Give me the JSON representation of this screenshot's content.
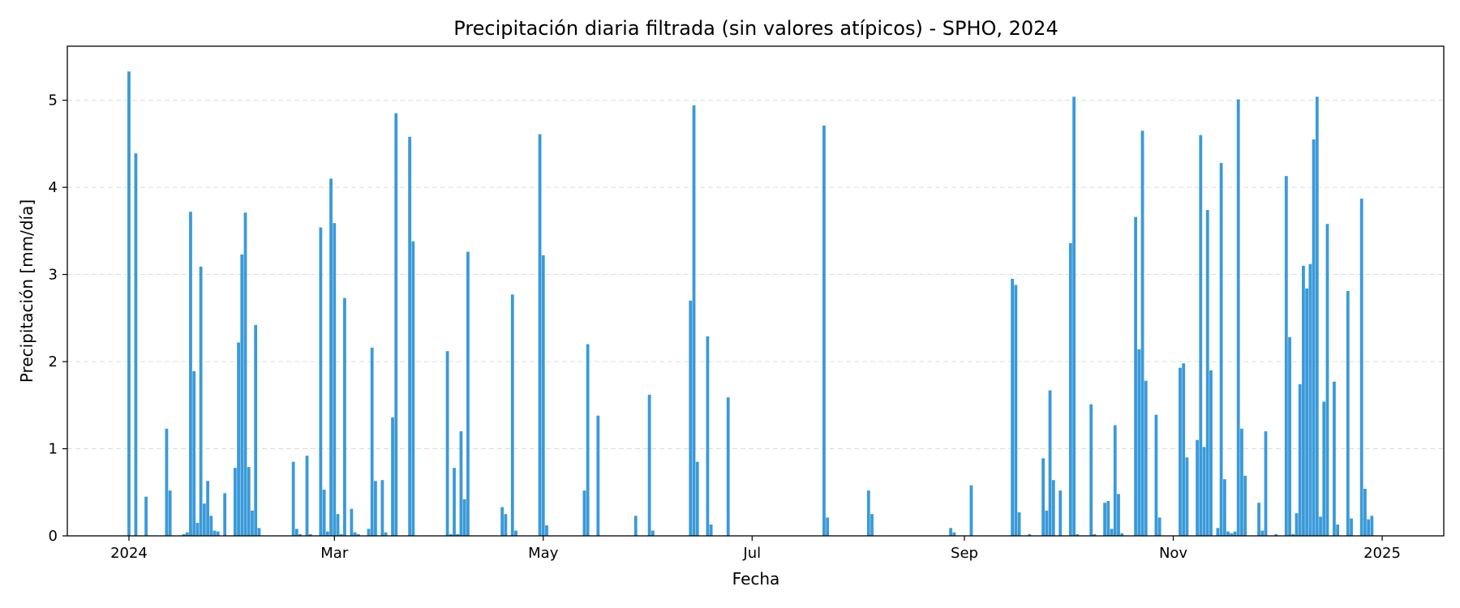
{
  "chart_data": {
    "type": "bar",
    "title": "Precipitación diaria filtrada (sin valores atípicos) - SPHO, 2024",
    "xlabel": "Fecha",
    "ylabel": "Precipitación [mm/día]",
    "x_tick_labels": [
      "2024",
      "Mar",
      "May",
      "Jul",
      "Sep",
      "Nov",
      "2025"
    ],
    "x_tick_dates": [
      "2024-01-01",
      "2024-03-01",
      "2024-05-01",
      "2024-07-01",
      "2024-09-01",
      "2024-11-01",
      "2025-01-01"
    ],
    "y_ticks": [
      0,
      1,
      2,
      3,
      4,
      5
    ],
    "xlim": [
      "2023-12-14",
      "2025-01-19"
    ],
    "ylim": [
      0,
      5.62
    ],
    "grid": "y-dashed",
    "bar_color": "#3a9ad9",
    "dates": [
      "2024-01-01",
      "2024-01-03",
      "2024-01-06",
      "2024-01-12",
      "2024-01-13",
      "2024-01-17",
      "2024-01-18",
      "2024-01-19",
      "2024-01-20",
      "2024-01-21",
      "2024-01-22",
      "2024-01-23",
      "2024-01-24",
      "2024-01-25",
      "2024-01-26",
      "2024-01-27",
      "2024-01-29",
      "2024-02-01",
      "2024-02-02",
      "2024-02-03",
      "2024-02-04",
      "2024-02-05",
      "2024-02-06",
      "2024-02-07",
      "2024-02-08",
      "2024-02-18",
      "2024-02-19",
      "2024-02-20",
      "2024-02-22",
      "2024-02-23",
      "2024-02-26",
      "2024-02-27",
      "2024-02-28",
      "2024-02-29",
      "2024-03-01",
      "2024-03-02",
      "2024-03-03",
      "2024-03-04",
      "2024-03-06",
      "2024-03-07",
      "2024-03-08",
      "2024-03-11",
      "2024-03-12",
      "2024-03-13",
      "2024-03-15",
      "2024-03-16",
      "2024-03-18",
      "2024-03-19",
      "2024-03-23",
      "2024-03-24",
      "2024-04-03",
      "2024-04-04",
      "2024-04-05",
      "2024-04-06",
      "2024-04-07",
      "2024-04-08",
      "2024-04-09",
      "2024-04-19",
      "2024-04-20",
      "2024-04-22",
      "2024-04-23",
      "2024-04-30",
      "2024-05-01",
      "2024-05-02",
      "2024-05-13",
      "2024-05-14",
      "2024-05-17",
      "2024-05-28",
      "2024-06-01",
      "2024-06-02",
      "2024-06-13",
      "2024-06-14",
      "2024-06-15",
      "2024-06-18",
      "2024-06-19",
      "2024-06-24",
      "2024-07-22",
      "2024-07-23",
      "2024-08-04",
      "2024-08-05",
      "2024-08-28",
      "2024-08-29",
      "2024-09-03",
      "2024-09-15",
      "2024-09-16",
      "2024-09-17",
      "2024-09-20",
      "2024-09-24",
      "2024-09-25",
      "2024-09-26",
      "2024-09-27",
      "2024-09-29",
      "2024-10-02",
      "2024-10-03",
      "2024-10-04",
      "2024-10-08",
      "2024-10-09",
      "2024-10-12",
      "2024-10-13",
      "2024-10-14",
      "2024-10-15",
      "2024-10-16",
      "2024-10-17",
      "2024-10-21",
      "2024-10-22",
      "2024-10-23",
      "2024-10-24",
      "2024-10-27",
      "2024-10-28",
      "2024-11-03",
      "2024-11-04",
      "2024-11-05",
      "2024-11-08",
      "2024-11-09",
      "2024-11-10",
      "2024-11-11",
      "2024-11-12",
      "2024-11-14",
      "2024-11-15",
      "2024-11-16",
      "2024-11-17",
      "2024-11-18",
      "2024-11-19",
      "2024-11-20",
      "2024-11-21",
      "2024-11-22",
      "2024-11-26",
      "2024-11-27",
      "2024-11-28",
      "2024-12-01",
      "2024-12-04",
      "2024-12-05",
      "2024-12-06",
      "2024-12-07",
      "2024-12-08",
      "2024-12-09",
      "2024-12-10",
      "2024-12-11",
      "2024-12-12",
      "2024-12-13",
      "2024-12-14",
      "2024-12-15",
      "2024-12-16",
      "2024-12-18",
      "2024-12-19",
      "2024-12-28",
      "2024-12-29"
    ],
    "values": [
      5.33,
      4.39,
      0.45,
      1.23,
      0.52,
      0.02,
      0.04,
      3.72,
      1.89,
      0.15,
      3.09,
      0.37,
      0.63,
      0.23,
      0.06,
      0.05,
      0.49,
      0.78,
      2.22,
      3.23,
      3.71,
      0.79,
      0.29,
      2.42,
      0.09,
      0.85,
      0.08,
      0.02,
      0.92,
      0.02,
      3.54,
      0.53,
      0.05,
      4.1,
      3.59,
      0.25,
      0.02,
      2.73,
      0.31,
      0.04,
      0.02,
      0.08,
      2.16,
      0.63,
      0.64,
      0.04,
      1.36,
      4.85,
      4.58,
      3.38,
      2.12,
      0.02,
      0.78,
      0.02,
      1.2,
      0.42,
      3.26,
      0.33,
      0.25,
      2.77,
      0.06,
      4.61,
      3.22,
      0.12,
      0.52,
      2.2,
      1.38,
      0.23,
      1.62,
      0.06,
      2.7,
      4.94,
      0.85,
      2.29,
      0.13,
      1.59,
      4.71,
      0.21,
      0.52,
      0.25,
      0.09,
      0.04,
      0.58,
      2.95,
      2.88,
      0.27,
      0.02,
      0.89,
      0.29,
      1.67,
      0.64,
      0.52,
      3.36,
      5.04,
      0.02,
      1.51,
      0.02,
      0.38,
      0.4,
      0.08,
      1.27,
      0.48,
      0.03,
      3.66,
      2.14,
      4.65,
      1.78,
      1.39,
      0.21,
      1.93,
      1.98,
      0.9,
      1.1,
      4.6,
      1.02,
      3.74,
      1.9,
      0.09,
      4.28,
      0.65,
      0.05,
      0.03,
      0.05,
      5.01,
      1.23,
      0.69,
      0.38,
      0.06,
      1.2,
      0.02,
      4.13,
      2.28,
      0.02,
      0.26,
      1.74,
      3.1,
      2.84,
      3.12,
      4.55,
      5.04,
      0.22,
      1.54,
      3.58,
      1.77,
      0.13,
      0.19,
      0.23
    ],
    "extra_dates": [
      "2024-12-22",
      "2024-12-23",
      "2024-12-26",
      "2024-12-27"
    ],
    "extra_values": [
      2.81,
      0.2,
      3.87,
      0.54
    ]
  }
}
